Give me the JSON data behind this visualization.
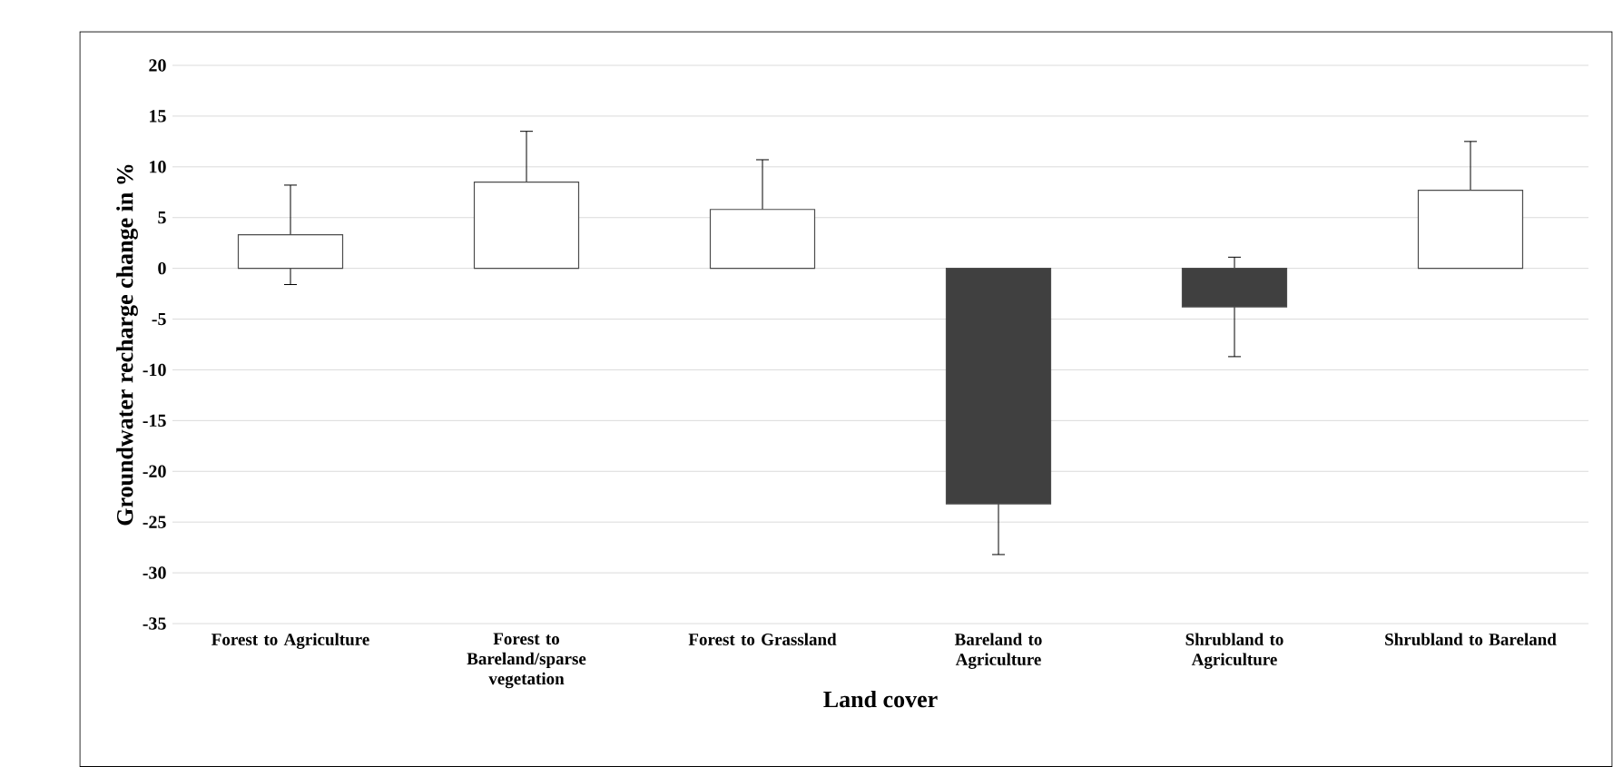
{
  "chart_data": {
    "type": "bar",
    "xlabel": "Land cover",
    "ylabel": "Groundwater  recharge change in %",
    "categories": [
      "Forest to Agriculture",
      "Forest to Bareland/sparse vegetation",
      "Forest to Grassland",
      "Bareland to Agriculture",
      "Shrubland to Agriculture",
      "Shrubland to Bareland"
    ],
    "values": [
      3.3,
      8.5,
      5.8,
      -23.2,
      -3.8,
      7.7
    ],
    "errors": [
      4.9,
      5,
      4.9,
      5,
      4.9,
      4.8
    ],
    "colors": [
      "#ffffff",
      "#ffffff",
      "#ffffff",
      "#404040",
      "#404040",
      "#ffffff"
    ],
    "ylim": [
      -35,
      20
    ],
    "yticks": [
      -35,
      -30,
      -25,
      -20,
      -15,
      -10,
      -5,
      0,
      5,
      10,
      15,
      20
    ],
    "grid": "y"
  }
}
